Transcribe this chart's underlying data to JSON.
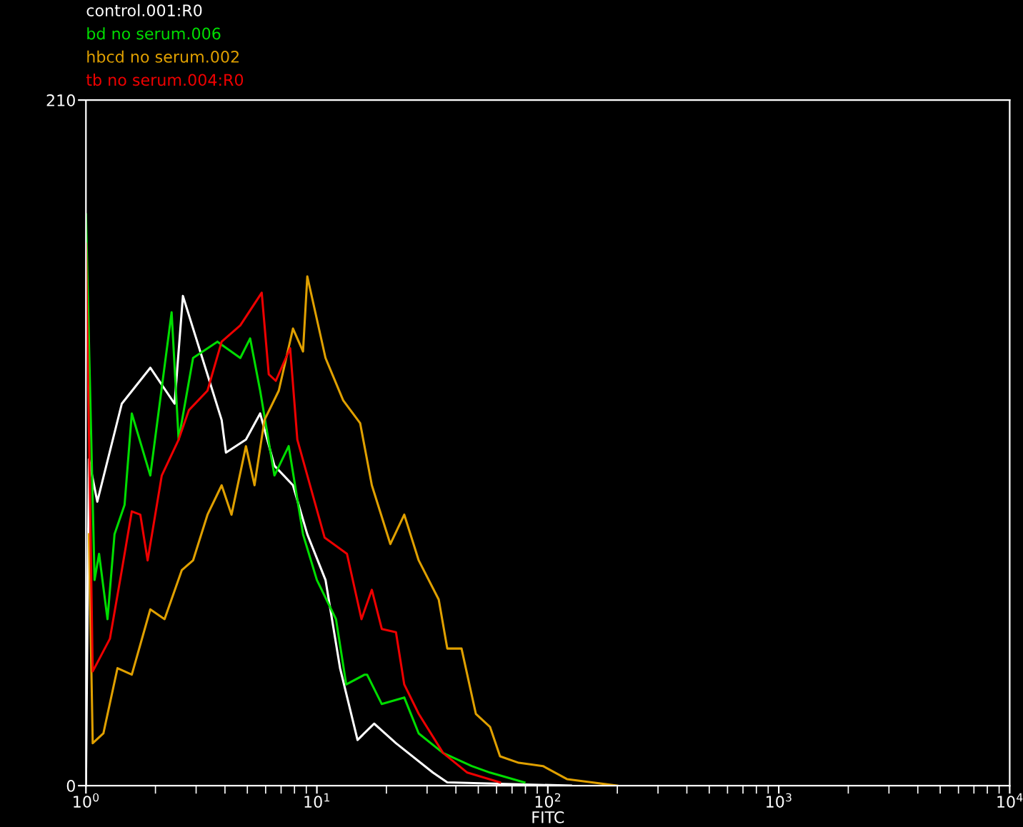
{
  "chart_data": {
    "type": "line",
    "xlabel": "FITC",
    "log": "x",
    "xlim": [
      1,
      10000
    ],
    "ylim": [
      0,
      210
    ],
    "xticks": [
      {
        "value": 1,
        "label": "10$^{0}$"
      },
      {
        "value": 10,
        "label": "10$^{1}$"
      },
      {
        "value": 100,
        "label": "10$^{2}$"
      },
      {
        "value": 1000,
        "label": "10$^{3}$"
      },
      {
        "value": 10000,
        "label": "10$^{4}$"
      }
    ],
    "yticks": [
      0,
      210
    ],
    "grid": false,
    "legend": "top left",
    "marker": "none",
    "line_style": "solid",
    "series": [
      {
        "name": "control.001:R0",
        "color": "#ffffff",
        "x": [
          1.0,
          1.03,
          1.12,
          1.43,
          1.9,
          2.42,
          2.63,
          3.87,
          4.04,
          4.93,
          5.68,
          6.55,
          7.88,
          9.09,
          10.9,
          12.6,
          15.0,
          17.7,
          22.0,
          31.8,
          36.7,
          126
        ],
        "values": [
          0,
          100,
          87,
          117,
          128,
          117,
          150,
          112,
          102,
          106,
          114,
          98,
          92,
          77,
          63,
          36,
          14,
          19,
          13,
          4,
          1,
          0
        ]
      },
      {
        "name": "bd no serum.006",
        "color": "#00dd00",
        "x": [
          1.0,
          1.09,
          1.14,
          1.24,
          1.33,
          1.47,
          1.58,
          1.9,
          2.35,
          2.52,
          2.91,
          3.71,
          4.66,
          5.14,
          5.68,
          6.55,
          7.55,
          8.71,
          10.0,
          12.1,
          13.4,
          16.1,
          16.5,
          19.1,
          23.9,
          27.6,
          35.2,
          46.8,
          56.2,
          79.2
        ],
        "values": [
          175,
          63,
          71,
          51,
          77,
          86,
          114,
          95,
          145,
          106,
          131,
          136,
          131,
          137,
          121,
          95,
          104,
          77,
          63,
          51,
          31,
          34,
          34,
          25,
          27,
          16,
          10,
          6,
          4,
          1
        ]
      },
      {
        "name": "hbcd no serum.002",
        "color": "#e0a000",
        "x": [
          1.03,
          1.07,
          1.19,
          1.37,
          1.58,
          1.9,
          2.19,
          2.6,
          2.91,
          3.36,
          3.87,
          4.27,
          4.93,
          5.37,
          5.93,
          6.84,
          7.88,
          8.71,
          9.09,
          10.9,
          13.0,
          15.4,
          17.3,
          20.8,
          23.9,
          27.6,
          33.7,
          36.7,
          42.3,
          48.8,
          56.2,
          62.1,
          74.8,
          95.3,
          121,
          200
        ],
        "values": [
          77,
          13,
          16,
          36,
          34,
          54,
          51,
          66,
          69,
          83,
          92,
          83,
          104,
          92,
          112,
          121,
          140,
          133,
          156,
          131,
          118,
          111,
          92,
          74,
          83,
          69,
          57,
          42,
          42,
          22,
          18,
          9,
          7,
          6,
          2,
          0
        ]
      },
      {
        "name": "tb no serum.004:R0",
        "color": "#ee0000",
        "x": [
          1.0,
          1.07,
          1.27,
          1.43,
          1.58,
          1.72,
          1.85,
          2.13,
          2.52,
          2.79,
          3.36,
          3.87,
          4.66,
          5.77,
          6.19,
          6.64,
          7.66,
          8.23,
          10.8,
          13.5,
          15.6,
          17.3,
          19.1,
          22.0,
          23.9,
          27.6,
          35.2,
          44.8,
          62.1
        ],
        "values": [
          166,
          35,
          45,
          66,
          84,
          83,
          69,
          95,
          106,
          115,
          121,
          136,
          141,
          151,
          126,
          124,
          134,
          106,
          76,
          71,
          51,
          60,
          48,
          47,
          31,
          22,
          10,
          4,
          1
        ]
      }
    ]
  }
}
